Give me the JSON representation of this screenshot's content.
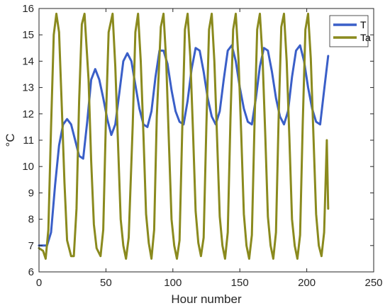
{
  "chart_data": {
    "type": "line",
    "xlabel": "Hour number",
    "ylabel": "°C",
    "xlim": [
      0,
      250
    ],
    "ylim": [
      6,
      16
    ],
    "xticks": [
      0,
      50,
      100,
      150,
      200,
      250
    ],
    "yticks": [
      6,
      7,
      8,
      9,
      10,
      11,
      12,
      13,
      14,
      15,
      16
    ],
    "grid": false,
    "legend_position": "top-right",
    "series": [
      {
        "name": "T",
        "color": "#3a5fc8",
        "x": [
          0,
          3,
          6,
          9,
          12,
          15,
          18,
          21,
          24,
          27,
          30,
          33,
          36,
          39,
          42,
          45,
          48,
          51,
          54,
          57,
          60,
          63,
          66,
          69,
          72,
          75,
          78,
          81,
          84,
          87,
          90,
          93,
          96,
          99,
          102,
          105,
          108,
          111,
          114,
          117,
          120,
          123,
          126,
          129,
          132,
          135,
          138,
          141,
          144,
          147,
          150,
          153,
          156,
          159,
          162,
          165,
          168,
          171,
          174,
          177,
          180,
          183,
          186,
          189,
          192,
          195,
          198,
          201,
          204,
          207,
          210,
          213,
          216
        ],
        "y": [
          7.0,
          7.0,
          7.0,
          7.5,
          9.3,
          10.8,
          11.6,
          11.8,
          11.6,
          11.0,
          10.4,
          10.3,
          11.7,
          13.3,
          13.7,
          13.3,
          12.6,
          11.8,
          11.2,
          11.6,
          12.8,
          14.0,
          14.3,
          14.0,
          13.1,
          12.2,
          11.6,
          11.5,
          12.1,
          13.4,
          14.4,
          14.4,
          13.9,
          12.9,
          12.1,
          11.7,
          11.6,
          12.5,
          13.7,
          14.5,
          14.4,
          13.6,
          12.6,
          11.9,
          11.6,
          12.1,
          13.3,
          14.4,
          14.6,
          14.0,
          13.0,
          12.2,
          11.7,
          11.6,
          12.6,
          13.8,
          14.5,
          14.4,
          13.6,
          12.6,
          11.9,
          11.6,
          12.1,
          13.4,
          14.4,
          14.6,
          14.0,
          13.0,
          12.2,
          11.7,
          11.6,
          12.9,
          14.2
        ],
        "values_note": ""
      },
      {
        "name": "Ta",
        "color": "#8a8a1e",
        "x": [
          0,
          3,
          5,
          7,
          9,
          11,
          13,
          15,
          17,
          19,
          21,
          24,
          26,
          28,
          30,
          32,
          34,
          37,
          39,
          41,
          43,
          46,
          48,
          50,
          52,
          55,
          57,
          59,
          61,
          63,
          65,
          67,
          70,
          72,
          74,
          76,
          78,
          80,
          82,
          84,
          86,
          88,
          91,
          93,
          95,
          97,
          99,
          101,
          103,
          105,
          107,
          109,
          111,
          113,
          115,
          117,
          119,
          121,
          123,
          125,
          127,
          129,
          131,
          133,
          135,
          137,
          139,
          141,
          143,
          145,
          147,
          149,
          151,
          153,
          155,
          157,
          159,
          161,
          163,
          165,
          167,
          169,
          171,
          173,
          175,
          177,
          179,
          181,
          183,
          185,
          187,
          189,
          191,
          193,
          195,
          197,
          199,
          201,
          203,
          205,
          207,
          209,
          211,
          213,
          215,
          216
        ],
        "y": [
          6.9,
          6.8,
          6.5,
          7.6,
          11.5,
          15.0,
          15.8,
          15.1,
          12.3,
          9.4,
          7.2,
          6.6,
          6.6,
          8.4,
          12.5,
          15.4,
          15.8,
          13.3,
          10.2,
          7.8,
          6.9,
          6.6,
          7.6,
          11.8,
          15.1,
          15.8,
          13.8,
          10.9,
          8.0,
          7.0,
          6.5,
          7.3,
          11.6,
          15.1,
          15.8,
          14.0,
          11.2,
          8.2,
          7.1,
          6.5,
          7.6,
          11.9,
          15.3,
          15.8,
          14.0,
          11.0,
          8.0,
          7.0,
          6.5,
          7.2,
          11.4,
          15.2,
          15.8,
          14.2,
          11.4,
          8.3,
          7.1,
          6.6,
          7.3,
          11.5,
          15.2,
          15.8,
          14.0,
          11.1,
          8.1,
          7.0,
          6.5,
          7.5,
          11.8,
          15.2,
          15.8,
          14.1,
          11.3,
          8.2,
          7.0,
          6.5,
          7.4,
          11.7,
          15.2,
          15.8,
          14.1,
          11.2,
          8.1,
          7.0,
          6.5,
          7.5,
          11.9,
          15.3,
          15.8,
          14.0,
          11.1,
          8.0,
          7.0,
          6.5,
          7.4,
          11.6,
          15.2,
          15.8,
          14.1,
          11.2,
          8.2,
          7.0,
          6.6,
          7.5,
          11.0,
          8.4
        ],
        "values_note": ""
      }
    ]
  }
}
